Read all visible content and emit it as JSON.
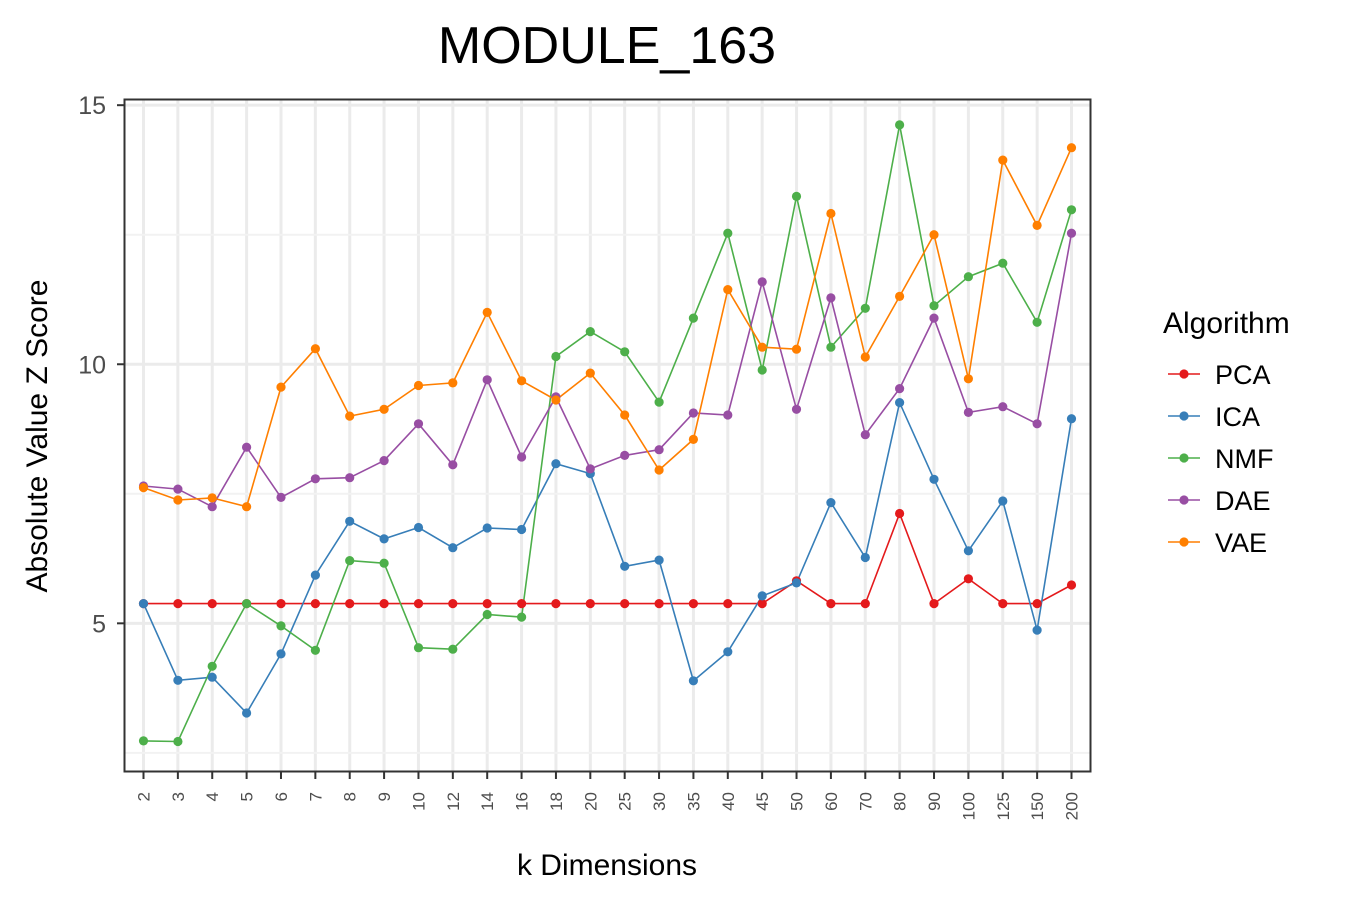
{
  "chart_data": {
    "type": "line",
    "title": "MODULE_163",
    "xlabel": "k Dimensions",
    "ylabel": "Absolute Value Z Score",
    "categories": [
      "2",
      "3",
      "4",
      "5",
      "6",
      "7",
      "8",
      "9",
      "10",
      "12",
      "14",
      "16",
      "18",
      "20",
      "25",
      "30",
      "35",
      "40",
      "45",
      "50",
      "60",
      "70",
      "80",
      "90",
      "100",
      "125",
      "150",
      "200"
    ],
    "y_ticks": [
      5,
      10,
      15
    ],
    "ylim": [
      2.15,
      15.1
    ],
    "grid": true,
    "legend": {
      "title": "Algorithm",
      "position": "right"
    },
    "series": [
      {
        "name": "PCA",
        "color": "#e41a1c",
        "values": [
          5.38,
          5.38,
          5.38,
          5.38,
          5.38,
          5.38,
          5.38,
          5.38,
          5.38,
          5.38,
          5.38,
          5.38,
          5.38,
          5.38,
          5.38,
          5.38,
          5.38,
          5.38,
          5.38,
          5.82,
          5.38,
          5.38,
          7.12,
          5.38,
          5.86,
          5.38,
          5.38,
          5.74
        ]
      },
      {
        "name": "ICA",
        "color": "#377eb8",
        "values": [
          5.38,
          3.9,
          3.96,
          3.27,
          4.41,
          5.93,
          6.97,
          6.63,
          6.85,
          6.46,
          6.84,
          6.81,
          8.08,
          7.89,
          6.1,
          6.22,
          3.89,
          4.45,
          5.53,
          5.78,
          7.33,
          6.27,
          9.26,
          7.78,
          6.4,
          7.36,
          4.87,
          8.95
        ]
      },
      {
        "name": "NMF",
        "color": "#4daf4a",
        "values": [
          2.73,
          2.72,
          4.17,
          5.38,
          4.95,
          4.48,
          6.21,
          6.16,
          4.53,
          4.5,
          5.17,
          5.12,
          10.15,
          10.63,
          10.24,
          9.27,
          10.89,
          12.53,
          9.89,
          13.24,
          10.33,
          11.08,
          14.62,
          11.13,
          11.69,
          11.95,
          10.81,
          12.98
        ]
      },
      {
        "name": "DAE",
        "color": "#984ea3",
        "values": [
          7.65,
          7.59,
          7.25,
          8.4,
          7.43,
          7.79,
          7.81,
          8.14,
          8.85,
          8.06,
          9.7,
          8.21,
          9.37,
          7.98,
          8.24,
          8.35,
          9.06,
          9.02,
          11.59,
          9.13,
          11.28,
          8.64,
          9.53,
          10.89,
          9.07,
          9.18,
          8.85,
          12.53
        ]
      },
      {
        "name": "VAE",
        "color": "#ff7f00",
        "values": [
          7.62,
          7.38,
          7.42,
          7.25,
          9.56,
          10.3,
          9.0,
          9.13,
          9.59,
          9.64,
          11.0,
          9.68,
          9.31,
          9.83,
          9.02,
          7.96,
          8.55,
          11.44,
          10.33,
          10.29,
          12.91,
          10.14,
          11.31,
          12.5,
          9.72,
          13.94,
          12.68,
          14.18
        ]
      }
    ]
  }
}
